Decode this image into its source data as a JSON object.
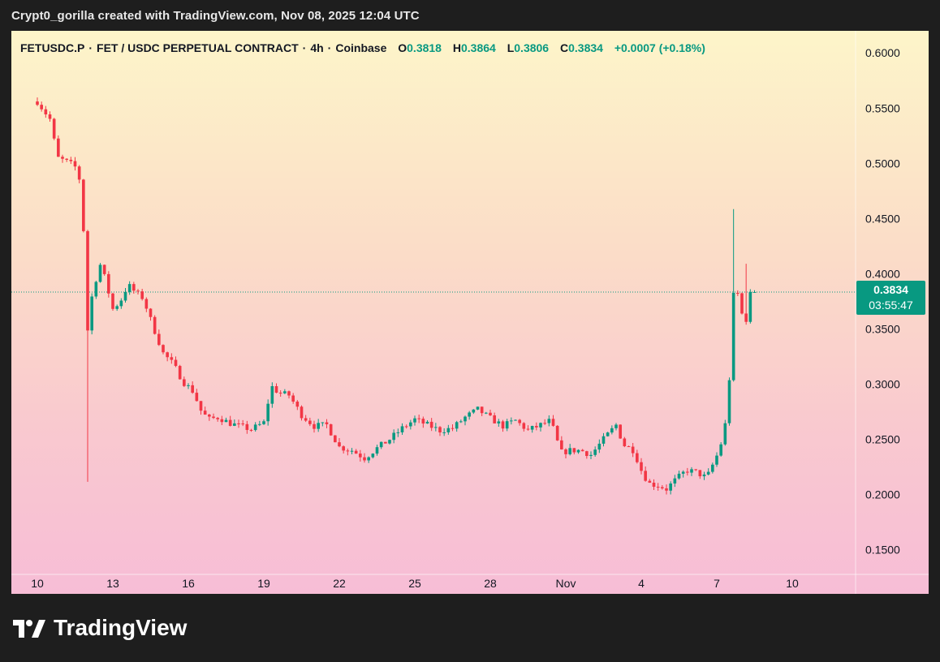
{
  "caption": "Crypt0_gorilla created with TradingView.com, Nov 08, 2025 12:04 UTC",
  "header": {
    "symbol": "FETUSDC.P",
    "separator": "·",
    "description": "FET / USDC PERPETUAL CONTRACT",
    "interval": "4h",
    "exchange": "Coinbase",
    "o_label": "O",
    "o_val": "0.3818",
    "h_label": "H",
    "h_val": "0.3864",
    "l_label": "L",
    "l_val": "0.3806",
    "c_label": "C",
    "c_val": "0.3834",
    "change": "+0.0007 (+0.18%)"
  },
  "price_tag": {
    "price": "0.3834",
    "countdown": "03:55:47"
  },
  "brand": {
    "name": "TradingView",
    "icon": "tradingview-logo-icon"
  },
  "colors": {
    "up": "#089981",
    "down": "#f23645",
    "bg_top": "#fdf5c9",
    "bg_bottom": "#f7bdd6"
  },
  "chart_data": {
    "type": "candlestick",
    "interval": "4h",
    "last_price": 0.3834,
    "ylim": [
      0.11,
      0.62
    ],
    "y_ticks": [
      "0.6000",
      "0.5500",
      "0.5000",
      "0.4500",
      "0.4000",
      "0.3500",
      "0.3000",
      "0.2500",
      "0.2000",
      "0.1500"
    ],
    "x_ticks": [
      "10",
      "13",
      "16",
      "19",
      "22",
      "25",
      "28",
      "Nov",
      "4",
      "7",
      "10"
    ],
    "x_tick_days": [
      0,
      3,
      6,
      9,
      12,
      15,
      18,
      21,
      24,
      27,
      30
    ],
    "anchors": [
      [
        0.0,
        0.556
      ],
      [
        0.5,
        0.54
      ],
      [
        0.8,
        0.505
      ],
      [
        1.3,
        0.5
      ],
      [
        1.6,
        0.495
      ],
      [
        1.8,
        0.468
      ],
      [
        1.95,
        0.34
      ],
      [
        2.2,
        0.385
      ],
      [
        2.5,
        0.408
      ],
      [
        2.7,
        0.395
      ],
      [
        3.0,
        0.368
      ],
      [
        3.3,
        0.375
      ],
      [
        3.6,
        0.39
      ],
      [
        3.9,
        0.383
      ],
      [
        4.2,
        0.378
      ],
      [
        4.6,
        0.352
      ],
      [
        5.0,
        0.328
      ],
      [
        5.4,
        0.318
      ],
      [
        5.8,
        0.302
      ],
      [
        6.2,
        0.293
      ],
      [
        6.5,
        0.276
      ],
      [
        6.8,
        0.268
      ],
      [
        7.2,
        0.27
      ],
      [
        7.6,
        0.265
      ],
      [
        8.0,
        0.262
      ],
      [
        8.5,
        0.259
      ],
      [
        9.0,
        0.265
      ],
      [
        9.3,
        0.298
      ],
      [
        9.6,
        0.292
      ],
      [
        10.0,
        0.29
      ],
      [
        10.5,
        0.272
      ],
      [
        11.0,
        0.262
      ],
      [
        11.5,
        0.263
      ],
      [
        12.0,
        0.243
      ],
      [
        12.5,
        0.24
      ],
      [
        13.0,
        0.233
      ],
      [
        13.5,
        0.242
      ],
      [
        14.0,
        0.25
      ],
      [
        14.5,
        0.26
      ],
      [
        15.0,
        0.268
      ],
      [
        15.5,
        0.263
      ],
      [
        16.0,
        0.258
      ],
      [
        16.5,
        0.26
      ],
      [
        17.0,
        0.27
      ],
      [
        17.5,
        0.277
      ],
      [
        18.0,
        0.269
      ],
      [
        18.5,
        0.262
      ],
      [
        19.0,
        0.267
      ],
      [
        19.5,
        0.258
      ],
      [
        20.0,
        0.263
      ],
      [
        20.4,
        0.267
      ],
      [
        20.8,
        0.238
      ],
      [
        21.2,
        0.24
      ],
      [
        21.6,
        0.24
      ],
      [
        22.0,
        0.236
      ],
      [
        22.5,
        0.25
      ],
      [
        23.0,
        0.263
      ],
      [
        23.3,
        0.245
      ],
      [
        23.7,
        0.24
      ],
      [
        24.0,
        0.222
      ],
      [
        24.3,
        0.21
      ],
      [
        24.7,
        0.208
      ],
      [
        25.0,
        0.205
      ],
      [
        25.3,
        0.212
      ],
      [
        25.8,
        0.222
      ],
      [
        26.2,
        0.22
      ],
      [
        26.6,
        0.215
      ],
      [
        27.0,
        0.235
      ],
      [
        27.3,
        0.255
      ],
      [
        27.5,
        0.305
      ],
      [
        27.7,
        0.395
      ],
      [
        27.9,
        0.375
      ],
      [
        28.1,
        0.352
      ],
      [
        28.3,
        0.372
      ],
      [
        28.5,
        0.383
      ]
    ],
    "spikes": [
      {
        "day": 1.95,
        "low": 0.2115
      },
      {
        "day": 27.65,
        "high": 0.4585
      },
      {
        "day": 28.15,
        "high": 0.409
      }
    ]
  }
}
